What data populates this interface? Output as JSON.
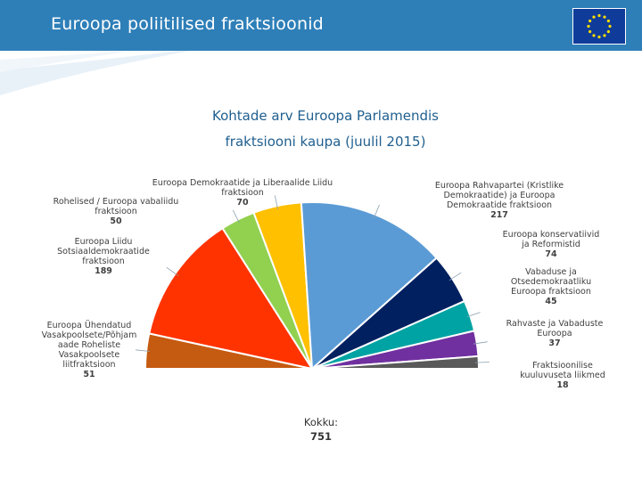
{
  "header": {
    "title": "Euroopa poliitilised fraktsioonid"
  },
  "chart_data": {
    "type": "pie",
    "title_line1": "Kohtade arv Euroopa Parlamendis",
    "title_line2": "fraktsiooni kaupa (juulil 2015)",
    "slices": [
      {
        "label": "Euroopa Ühendatud Vasakpoolsete/Põhjamaade Roheliste Vasakpoolsete liitfraktsioon",
        "label_lines": [
          "Euroopa Ühendatud",
          "Vasakpoolsete/Põhjam",
          "aade Roheliste",
          "Vasakpoolsete",
          "liitfraktsioon"
        ],
        "value": 51,
        "color": "#c55a11"
      },
      {
        "label": "Euroopa Liidu Sotsiaaldemokraatide fraktsioon",
        "label_lines": [
          "Euroopa Liidu",
          "Sotsiaaldemokraatide",
          "fraktsioon"
        ],
        "value": 189,
        "color": "#ff3300"
      },
      {
        "label": "Rohelised / Euroopa vabaliidu fraktsioon",
        "label_lines": [
          "Rohelised / Euroopa vabaliidu",
          "fraktsioon"
        ],
        "value": 50,
        "color": "#92d050"
      },
      {
        "label": "Euroopa Demokraatide ja Liberaalide Liidu fraktsioon",
        "label_lines": [
          "Euroopa Demokraatide ja Liberaalide Liidu",
          "fraktsioon"
        ],
        "value": 70,
        "color": "#ffc000"
      },
      {
        "label": "Euroopa Rahvapartei (Kristlike Demokraatide) ja Euroopa Demokraatide fraktsioon",
        "label_lines": [
          "Euroopa Rahvapartei (Kristlike",
          "Demokraatide) ja Euroopa",
          "Demokraatide fraktsioon"
        ],
        "value": 217,
        "color": "#5b9bd5"
      },
      {
        "label": "Euroopa konservatiivid ja Reformistid",
        "label_lines": [
          "Euroopa konservatiivid",
          "ja Reformistid"
        ],
        "value": 74,
        "color": "#002060"
      },
      {
        "label": "Vabaduse ja Otsedemokraatliku Euroopa fraktsioon",
        "label_lines": [
          "Vabaduse ja",
          "Otsedemokraatliku",
          "Euroopa fraktsioon"
        ],
        "value": 45,
        "color": "#00a3a3"
      },
      {
        "label": "Rahvaste ja Vabaduste Euroopa",
        "label_lines": [
          "Rahvaste ja Vabaduste",
          "Euroopa"
        ],
        "value": 37,
        "color": "#7030a0"
      },
      {
        "label": "Fraktsioonilise kuuluvuseta liikmed",
        "label_lines": [
          "Fraktsioonilise",
          "kuuluvuseta liikmed"
        ],
        "value": 18,
        "color": "#595959"
      }
    ],
    "total_label": "Kokku:",
    "total": 751
  },
  "colors": {
    "header_bg": "#2e7fb8",
    "flag_bg": "#0f3c9b",
    "flag_star": "#ffdd00"
  }
}
